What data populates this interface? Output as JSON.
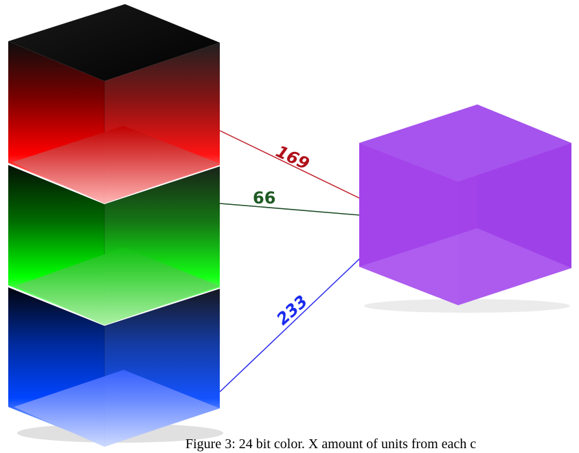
{
  "channels": [
    {
      "name": "",
      "value": "169",
      "color": "#ff0000",
      "line_color": "#c0202a",
      "label_color": "#b0101a"
    },
    {
      "name": "",
      "value": "66",
      "color": "#00ff00",
      "line_color": "#1a4a24",
      "label_color": "#1e5a22"
    },
    {
      "name": "",
      "value": "233",
      "color": "#0033ff",
      "line_color": "#2a2aee",
      "label_color": "#1a2aee"
    }
  ],
  "result_cube": {
    "color": "#a64bee"
  },
  "caption": "Figure 3: 24 bit color. X amount of units from each c"
}
